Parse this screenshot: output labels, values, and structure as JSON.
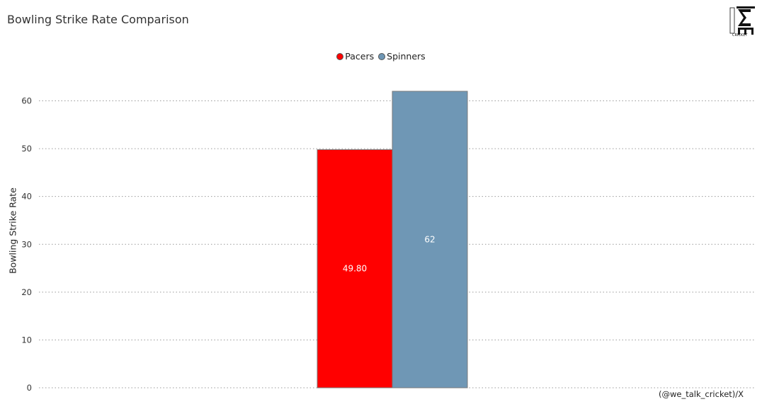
{
  "title": "Bowling Strike Rate Comparison",
  "credit": "(@we_talk_cricket)/X",
  "logo": {
    "text": "TALK CRICKET"
  },
  "chart_data": {
    "type": "bar",
    "categories": [
      ""
    ],
    "series": [
      {
        "name": "Pacers",
        "values": [
          49.8
        ],
        "label": "49.80",
        "color": "#ff0000"
      },
      {
        "name": "Spinners",
        "values": [
          62
        ],
        "label": "62",
        "color": "#6f97b5"
      }
    ],
    "ylabel": "Bowling Strike Rate",
    "xlabel": "",
    "ylim": [
      0,
      62
    ],
    "yticks": [
      0,
      10,
      20,
      30,
      40,
      50,
      60
    ],
    "grid": true,
    "legend": "top-center"
  }
}
